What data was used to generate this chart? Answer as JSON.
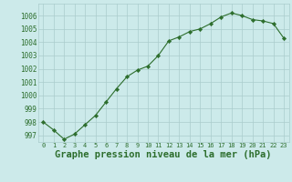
{
  "x": [
    0,
    1,
    2,
    3,
    4,
    5,
    6,
    7,
    8,
    9,
    10,
    11,
    12,
    13,
    14,
    15,
    16,
    17,
    18,
    19,
    20,
    21,
    22,
    23
  ],
  "y": [
    998.0,
    997.4,
    996.7,
    997.1,
    997.8,
    998.5,
    999.5,
    1000.5,
    1001.4,
    1001.9,
    1002.2,
    1003.0,
    1004.1,
    1004.4,
    1004.8,
    1005.0,
    1005.4,
    1005.9,
    1006.2,
    1006.0,
    1005.7,
    1005.6,
    1005.4,
    1004.3
  ],
  "line_color": "#2d6e2d",
  "marker": "D",
  "marker_size": 2.2,
  "bg_color": "#cceaea",
  "grid_color": "#aacccc",
  "xlabel": "Graphe pression niveau de la mer (hPa)",
  "xlabel_fontsize": 7.5,
  "ylabel_ticks": [
    997,
    998,
    999,
    1000,
    1001,
    1002,
    1003,
    1004,
    1005,
    1006
  ],
  "xlim": [
    -0.5,
    23.5
  ],
  "ylim": [
    996.5,
    1006.9
  ],
  "xtick_labels": [
    "0",
    "1",
    "2",
    "3",
    "4",
    "5",
    "6",
    "7",
    "8",
    "9",
    "10",
    "11",
    "12",
    "13",
    "14",
    "15",
    "16",
    "17",
    "18",
    "19",
    "20",
    "21",
    "22",
    "23"
  ]
}
